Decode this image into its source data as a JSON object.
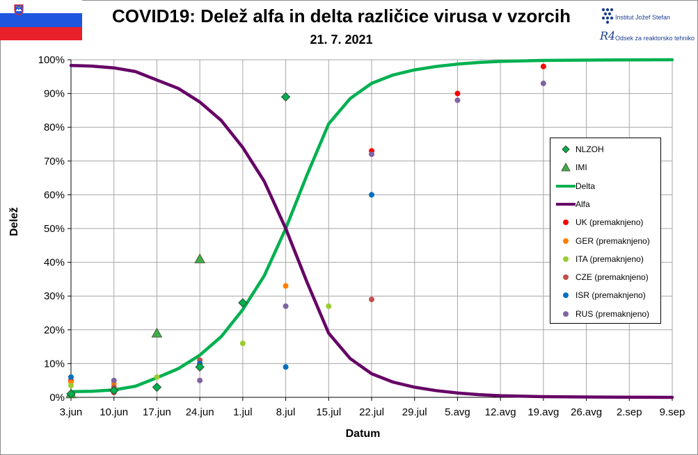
{
  "header": {
    "title": "COVID19: Delež alfa in delta različice virusa v vzorcih",
    "date": "21. 7. 2021"
  },
  "logos": {
    "ijs": "Institut Jožef Stefan",
    "r4": "Odsek za reaktorsko tehniko",
    "r4_mark": "R4"
  },
  "colors": {
    "delta": "#00b050",
    "alfa": "#660066",
    "nlzoh": "#00b050",
    "imi": "#3fae49",
    "uk": "#ff0000",
    "ger": "#ff8000",
    "ita": "#9acd32",
    "cze": "#c0504d",
    "isr": "#0070c0",
    "rus": "#8064a2",
    "grid": "#a6a6a6"
  },
  "chart_data": {
    "type": "line",
    "xlabel": "Datum",
    "ylabel": "Delež",
    "ylim": [
      0,
      100
    ],
    "yticks": [
      "0%",
      "10%",
      "20%",
      "30%",
      "40%",
      "50%",
      "60%",
      "70%",
      "80%",
      "90%",
      "100%"
    ],
    "categories": [
      "3.jun",
      "10.jun",
      "17.jun",
      "24.jun",
      "1.jul",
      "8.jul",
      "15.jul",
      "22.jul",
      "29.jul",
      "5.avg",
      "12.avg",
      "19.avg",
      "26.avg",
      "2.sep",
      "9.sep"
    ],
    "grid": true,
    "legend_position": "right",
    "series": [
      {
        "name": "NLZOH",
        "kind": "diamond",
        "color_key": "nlzoh",
        "points": [
          [
            0,
            1
          ],
          [
            1,
            2
          ],
          [
            2,
            3
          ],
          [
            3,
            9
          ],
          [
            4,
            28
          ],
          [
            5,
            89
          ]
        ]
      },
      {
        "name": "IMI",
        "kind": "triangle",
        "color_key": "imi",
        "points": [
          [
            0,
            1
          ],
          [
            2,
            19
          ],
          [
            3,
            41
          ]
        ]
      },
      {
        "name": "Delta",
        "kind": "line",
        "color_key": "delta",
        "points": [
          [
            0,
            1.7
          ],
          [
            0.5,
            1.8
          ],
          [
            1,
            2.2
          ],
          [
            1.5,
            3.3
          ],
          [
            2,
            5.8
          ],
          [
            2.5,
            8.5
          ],
          [
            3,
            12.5
          ],
          [
            3.5,
            18
          ],
          [
            4,
            26
          ],
          [
            4.5,
            36
          ],
          [
            5,
            50
          ],
          [
            5.5,
            66
          ],
          [
            6,
            81
          ],
          [
            6.5,
            88.5
          ],
          [
            7,
            93
          ],
          [
            7.5,
            95.5
          ],
          [
            8,
            97
          ],
          [
            8.5,
            98
          ],
          [
            9,
            98.7
          ],
          [
            9.5,
            99.2
          ],
          [
            10,
            99.5
          ],
          [
            11,
            99.8
          ],
          [
            12,
            99.9
          ],
          [
            14,
            100
          ]
        ]
      },
      {
        "name": "Alfa",
        "kind": "line",
        "color_key": "alfa",
        "points": [
          [
            0,
            98.3
          ],
          [
            0.5,
            98.1
          ],
          [
            1,
            97.6
          ],
          [
            1.5,
            96.5
          ],
          [
            2,
            94
          ],
          [
            2.5,
            91.5
          ],
          [
            3,
            87.5
          ],
          [
            3.5,
            82
          ],
          [
            4,
            74
          ],
          [
            4.5,
            64
          ],
          [
            5,
            50
          ],
          [
            5.5,
            34
          ],
          [
            6,
            19
          ],
          [
            6.5,
            11.5
          ],
          [
            7,
            7
          ],
          [
            7.5,
            4.5
          ],
          [
            8,
            3
          ],
          [
            8.5,
            2
          ],
          [
            9,
            1.3
          ],
          [
            9.5,
            0.8
          ],
          [
            10,
            0.5
          ],
          [
            11,
            0.2
          ],
          [
            12,
            0.1
          ],
          [
            14,
            0
          ]
        ]
      },
      {
        "name": "UK (premaknjeno)",
        "kind": "dot",
        "color_key": "uk",
        "points": [
          [
            0,
            5
          ],
          [
            1,
            1.5
          ],
          [
            3,
            9
          ],
          [
            7,
            73
          ],
          [
            9,
            90
          ],
          [
            11,
            98
          ]
        ]
      },
      {
        "name": "GER (premaknjeno)",
        "kind": "dot",
        "color_key": "ger",
        "points": [
          [
            0,
            4.5
          ],
          [
            1,
            4
          ],
          [
            3,
            11
          ],
          [
            5,
            33
          ]
        ]
      },
      {
        "name": "ITA (premaknjeno)",
        "kind": "dot",
        "color_key": "ita",
        "points": [
          [
            0,
            3.5
          ],
          [
            1,
            2
          ],
          [
            2,
            6
          ],
          [
            4,
            16
          ],
          [
            6,
            27
          ]
        ]
      },
      {
        "name": "CZE (premaknjeno)",
        "kind": "dot",
        "color_key": "cze",
        "points": [
          [
            1,
            3
          ],
          [
            3,
            11
          ],
          [
            7,
            29
          ]
        ]
      },
      {
        "name": "ISR (premaknjeno)",
        "kind": "dot",
        "color_key": "isr",
        "points": [
          [
            0,
            6
          ],
          [
            3,
            10
          ],
          [
            5,
            9
          ],
          [
            7,
            60
          ]
        ]
      },
      {
        "name": "RUS (premaknjeno)",
        "kind": "dot",
        "color_key": "rus",
        "points": [
          [
            1,
            5
          ],
          [
            3,
            5
          ],
          [
            5,
            27
          ],
          [
            7,
            72
          ],
          [
            9,
            88
          ],
          [
            11,
            93
          ]
        ]
      }
    ]
  }
}
